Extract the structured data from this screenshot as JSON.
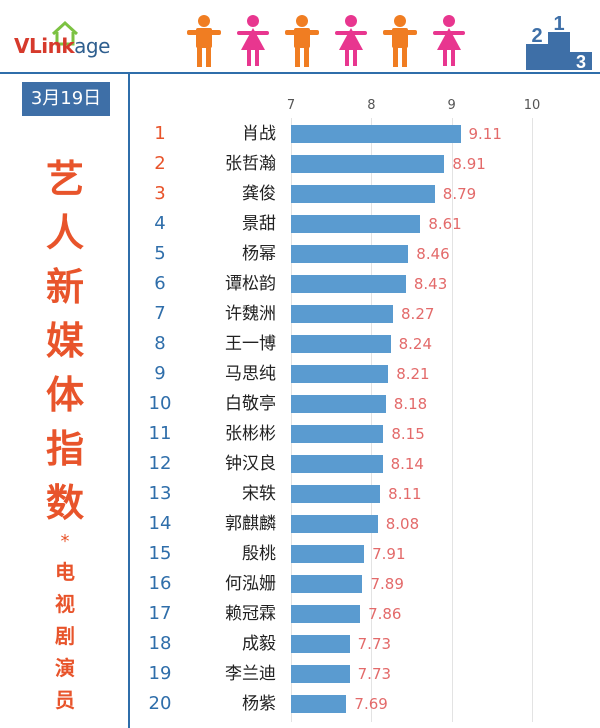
{
  "header": {
    "logo_primary": "VLink",
    "logo_secondary": "age",
    "figure_colors": [
      "#f07d22",
      "#e8368f",
      "#f07d22",
      "#e8368f",
      "#f07d22",
      "#e8368f"
    ],
    "podium_color": "#3e6fa7",
    "podium_labels": [
      "2",
      "1",
      "3"
    ]
  },
  "date": "3月19日",
  "title_main": [
    "艺",
    "人",
    "新",
    "媒",
    "体",
    "指",
    "数"
  ],
  "title_star": "*",
  "title_sub": [
    "电",
    "视",
    "剧",
    "演",
    "员"
  ],
  "colors": {
    "accent_blue": "#3e6fa7",
    "bar": "#5a9bd0",
    "rank_top": "#e8542b",
    "rank_rest": "#2f6eaa",
    "value": "#e36a6a",
    "title": "#e8542b"
  },
  "chart_data": {
    "type": "bar",
    "orientation": "horizontal",
    "title": "",
    "xlabel": "",
    "ylabel": "",
    "xlim": [
      7,
      10
    ],
    "ticks": [
      "7",
      "8",
      "9",
      "10"
    ],
    "grid": true,
    "ranks": [
      "1",
      "2",
      "3",
      "4",
      "5",
      "6",
      "7",
      "8",
      "9",
      "10",
      "11",
      "12",
      "13",
      "14",
      "15",
      "16",
      "17",
      "18",
      "19",
      "20"
    ],
    "categories": [
      "肖战",
      "张哲瀚",
      "龚俊",
      "景甜",
      "杨幂",
      "谭松韵",
      "许魏洲",
      "王一博",
      "马思纯",
      "白敬亭",
      "张彬彬",
      "钟汉良",
      "宋轶",
      "郭麒麟",
      "殷桃",
      "何泓姗",
      "赖冠霖",
      "成毅",
      "李兰迪",
      "杨紫"
    ],
    "values": [
      9.11,
      8.91,
      8.79,
      8.61,
      8.46,
      8.43,
      8.27,
      8.24,
      8.21,
      8.18,
      8.15,
      8.14,
      8.11,
      8.08,
      7.91,
      7.89,
      7.86,
      7.73,
      7.73,
      7.69
    ],
    "value_labels": [
      "9.11",
      "8.91",
      "8.79",
      "8.61",
      "8.46",
      "8.43",
      "8.27",
      "8.24",
      "8.21",
      "8.18",
      "8.15",
      "8.14",
      "8.11",
      "8.08",
      "7.91",
      "7.89",
      "7.86",
      "7.73",
      "7.73",
      "7.69"
    ]
  }
}
